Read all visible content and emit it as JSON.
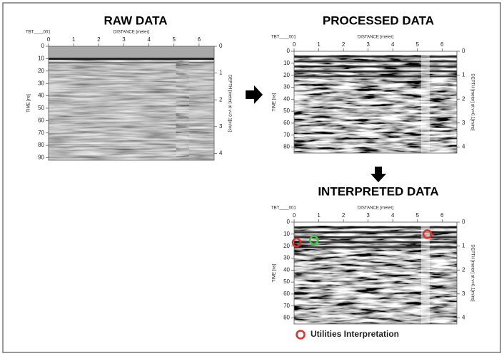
{
  "panels": [
    {
      "title": "RAW DATA",
      "file_label": "TBT____001",
      "x_label": "DISTANCE [meter]",
      "y_label": "TIME [ns]",
      "y2_label": "DEPTH [meter] at v=0.1[m/ns]",
      "x_ticks": [
        "0",
        "1",
        "2",
        "3",
        "4",
        "5",
        "6"
      ],
      "y_ticks": [
        "0",
        "10",
        "20",
        "30",
        "40",
        "50",
        "60",
        "70",
        "80",
        "90"
      ],
      "y2_ticks": [
        "0",
        "1",
        "2",
        "3",
        "4"
      ]
    },
    {
      "title": "PROCESSED DATA",
      "file_label": "TBT____001",
      "x_label": "DISTANCE [meter]",
      "y_label": "TIME [ns]",
      "y2_label": "DEPTH [meter] at v=0.1[m/ns]",
      "x_ticks": [
        "0",
        "1",
        "2",
        "3",
        "4",
        "5",
        "6"
      ],
      "y_ticks": [
        "0",
        "10",
        "20",
        "30",
        "40",
        "50",
        "60",
        "70",
        "80"
      ],
      "y2_ticks": [
        "0",
        "1",
        "2",
        "3",
        "4"
      ]
    },
    {
      "title": "INTERPRETED DATA",
      "file_label": "TBT____001",
      "x_label": "DISTANCE [meter]",
      "y_label": "TIME [ns]",
      "y2_label": "DEPTH [meter] at v=0.1[m/ns]",
      "x_ticks": [
        "0",
        "1",
        "2",
        "3",
        "4",
        "5",
        "6"
      ],
      "y_ticks": [
        "0",
        "10",
        "20",
        "30",
        "40",
        "50",
        "60",
        "70",
        "80"
      ],
      "y2_ticks": [
        "0",
        "1",
        "2",
        "3",
        "4"
      ]
    }
  ],
  "legend": {
    "label": "Utilities Interpretation"
  }
}
